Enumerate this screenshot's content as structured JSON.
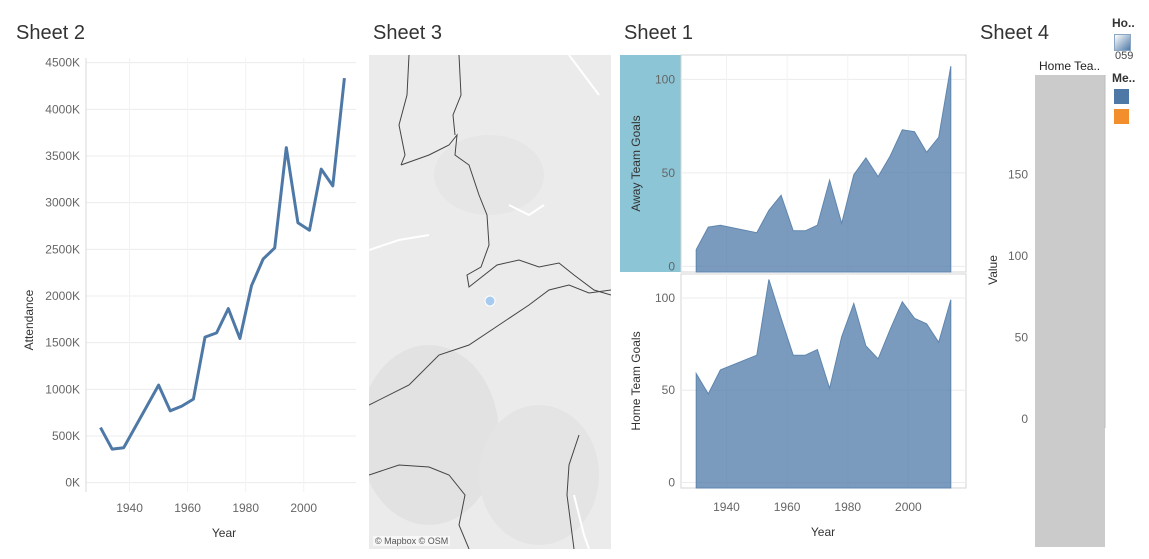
{
  "sheets": {
    "sheet2_title": "Sheet 2",
    "sheet3_title": "Sheet 3",
    "sheet1_title": "Sheet 1",
    "sheet4_title": "Sheet 4"
  },
  "map": {
    "credit": "© Mapbox © OSM",
    "point_color": "#a6cbee"
  },
  "legend": {
    "color_title": "Ho..",
    "color_range_label": "059",
    "measure_title": "Me..",
    "measure_colors": [
      "#4e79a7",
      "#f28e2b"
    ]
  },
  "chart_data": [
    {
      "type": "line",
      "sheet": "Sheet 2",
      "xlabel": "Year",
      "ylabel": "Attendance",
      "xlim": [
        1925,
        2018
      ],
      "ylim": [
        -100000,
        4550000
      ],
      "x_ticks": [
        1940,
        1960,
        1980,
        2000
      ],
      "y_ticks": [
        0,
        500000,
        1000000,
        1500000,
        2000000,
        2500000,
        3000000,
        3500000,
        4000000,
        4500000
      ],
      "y_tick_labels": [
        "0K",
        "500K",
        "1000K",
        "1500K",
        "2000K",
        "2500K",
        "3000K",
        "3500K",
        "4000K",
        "4500K"
      ],
      "color": "#4e79a7",
      "x": [
        1930,
        1934,
        1938,
        1950,
        1954,
        1958,
        1962,
        1966,
        1970,
        1974,
        1978,
        1982,
        1986,
        1990,
        1994,
        1998,
        2002,
        2006,
        2010,
        2014
      ],
      "values": [
        590000,
        360000,
        375000,
        1045000,
        770000,
        820000,
        895000,
        1560000,
        1605000,
        1865000,
        1545000,
        2110000,
        2395000,
        2515000,
        3590000,
        2785000,
        2705000,
        3360000,
        3180000,
        4335000
      ]
    },
    {
      "type": "area",
      "sheet": "Sheet 1",
      "xlabel": "Year",
      "xlim": [
        1925,
        2019
      ],
      "x_ticks": [
        1940,
        1960,
        1980,
        2000
      ],
      "color": "#4e79a7",
      "x": [
        1930,
        1934,
        1938,
        1950,
        1954,
        1958,
        1962,
        1966,
        1970,
        1974,
        1978,
        1982,
        1986,
        1990,
        1994,
        1998,
        2002,
        2006,
        2010,
        2014
      ],
      "panels": [
        {
          "name": "Away Team Goals",
          "ylabel": "Away Team Goals",
          "ylim": [
            -3,
            113
          ],
          "y_ticks": [
            0,
            50,
            100
          ],
          "values": [
            9,
            21,
            22,
            18,
            30,
            38,
            19,
            19,
            22,
            46,
            23,
            49,
            58,
            48,
            59,
            73,
            72,
            61,
            69,
            107
          ]
        },
        {
          "name": "Home Team Goals",
          "ylabel": "Home Team Goals",
          "ylim": [
            -3,
            113
          ],
          "y_ticks": [
            0,
            50,
            100
          ],
          "values": [
            59,
            48,
            61,
            69,
            110,
            89,
            69,
            69,
            72,
            51,
            79,
            97,
            74,
            67,
            83,
            98,
            89,
            86,
            76,
            99
          ]
        }
      ]
    },
    {
      "type": "bar",
      "sheet": "Sheet 4",
      "column_header": "Home Tea..",
      "ylabel": "Value",
      "y_ticks": [
        0,
        50,
        100,
        150
      ]
    }
  ]
}
